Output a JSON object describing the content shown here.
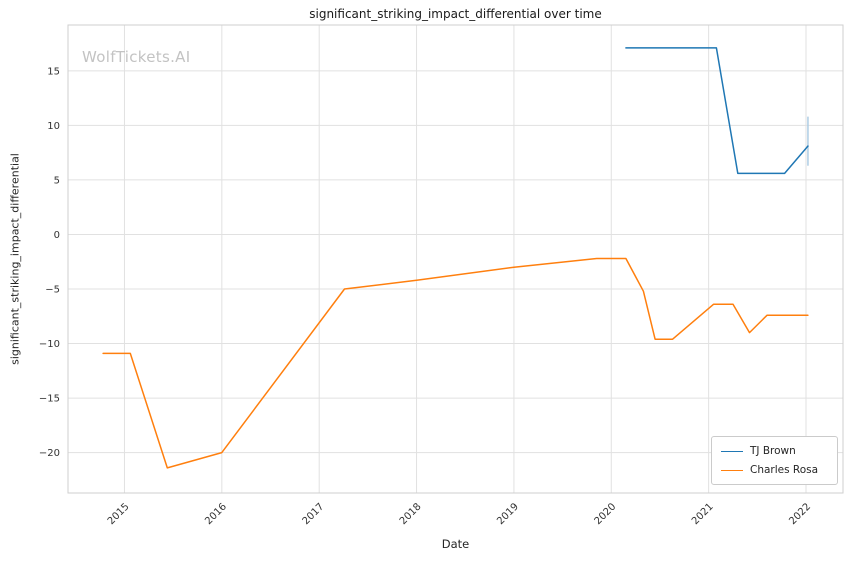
{
  "watermark": "WolfTickets.AI",
  "chart_data": {
    "type": "line",
    "title": "significant_striking_impact_differential over time",
    "xlabel": "Date",
    "ylabel": "significant_striking_impact_differential",
    "xlim": [
      2014.42,
      2022.38
    ],
    "ylim": [
      -23.7,
      19.2
    ],
    "grid": true,
    "legend_position": "lower right",
    "x_ticks": [
      {
        "v": 2015,
        "label": "2015"
      },
      {
        "v": 2016,
        "label": "2016"
      },
      {
        "v": 2017,
        "label": "2017"
      },
      {
        "v": 2018,
        "label": "2018"
      },
      {
        "v": 2019,
        "label": "2019"
      },
      {
        "v": 2020,
        "label": "2020"
      },
      {
        "v": 2021,
        "label": "2021"
      },
      {
        "v": 2022,
        "label": "2022"
      }
    ],
    "y_ticks": [
      {
        "v": -20,
        "label": "−20"
      },
      {
        "v": -15,
        "label": "−15"
      },
      {
        "v": -10,
        "label": "−10"
      },
      {
        "v": -5,
        "label": "−5"
      },
      {
        "v": 0,
        "label": "0"
      },
      {
        "v": 5,
        "label": "5"
      },
      {
        "v": 10,
        "label": "10"
      },
      {
        "v": 15,
        "label": "15"
      }
    ],
    "series": [
      {
        "name": "TJ Brown",
        "color": "#1f77b4",
        "points": [
          [
            2020.15,
            17.1
          ],
          [
            2021.08,
            17.1
          ],
          [
            2021.3,
            5.6
          ],
          [
            2021.78,
            5.6
          ],
          [
            2022.02,
            8.1
          ]
        ]
      },
      {
        "name": "Charles Rosa",
        "color": "#ff7f0e",
        "points": [
          [
            2014.78,
            -10.9
          ],
          [
            2015.06,
            -10.9
          ],
          [
            2015.44,
            -21.4
          ],
          [
            2016.0,
            -20.0
          ],
          [
            2017.26,
            -5.0
          ],
          [
            2018.0,
            -4.2
          ],
          [
            2019.0,
            -3.0
          ],
          [
            2019.85,
            -2.2
          ],
          [
            2020.15,
            -2.2
          ],
          [
            2020.33,
            -5.2
          ],
          [
            2020.45,
            -9.6
          ],
          [
            2020.63,
            -9.6
          ],
          [
            2021.05,
            -6.4
          ],
          [
            2021.25,
            -6.4
          ],
          [
            2021.42,
            -9.0
          ],
          [
            2021.6,
            -7.4
          ],
          [
            2022.02,
            -7.4
          ]
        ]
      }
    ],
    "marker": {
      "x": 2022.02,
      "y_from": 6.3,
      "y_to": 10.8,
      "color": "#aecde4"
    }
  }
}
